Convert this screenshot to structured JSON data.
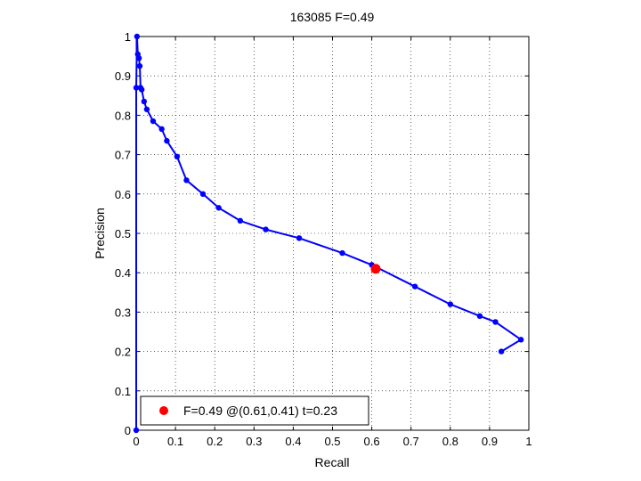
{
  "chart_data": {
    "type": "line",
    "title": "163085 F=0.49",
    "xlabel": "Recall",
    "ylabel": "Precision",
    "xlim": [
      0,
      1
    ],
    "ylim": [
      0,
      1
    ],
    "grid": true,
    "legend_position": "bottom-left",
    "x_ticks": [
      "0",
      "0.1",
      "0.2",
      "0.3",
      "0.4",
      "0.5",
      "0.6",
      "0.7",
      "0.8",
      "0.9",
      "1"
    ],
    "y_ticks": [
      "0",
      "0.1",
      "0.2",
      "0.3",
      "0.4",
      "0.5",
      "0.6",
      "0.7",
      "0.8",
      "0.9",
      "1"
    ],
    "series": [
      {
        "color": "#0000ff",
        "x": [
          0,
          0,
          0.002,
          0.004,
          0.007,
          0.009,
          0.011,
          0.014,
          0.02,
          0.027,
          0.043,
          0.065,
          0.078,
          0.104,
          0.128,
          0.17,
          0.21,
          0.265,
          0.33,
          0.415,
          0.525,
          0.6,
          0.71,
          0.8,
          0.875,
          0.915,
          0.98,
          0.93
        ],
        "y": [
          0,
          0.87,
          1.0,
          0.955,
          0.945,
          0.925,
          0.87,
          0.865,
          0.835,
          0.815,
          0.785,
          0.765,
          0.735,
          0.695,
          0.635,
          0.6,
          0.565,
          0.532,
          0.51,
          0.488,
          0.45,
          0.42,
          0.365,
          0.32,
          0.29,
          0.275,
          0.23,
          0.2
        ]
      }
    ],
    "highlight": {
      "x": 0.61,
      "y": 0.41,
      "color": "#ff0000",
      "label": "F=0.49 @(0.61,0.41) t=0.23"
    }
  }
}
